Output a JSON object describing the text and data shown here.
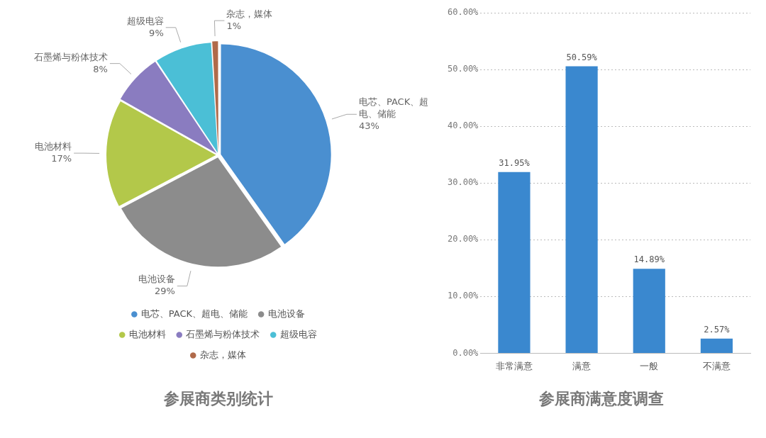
{
  "chart_data": [
    {
      "type": "pie",
      "title": "参展商类别统计",
      "categories": [
        "电芯、PACK、超电、储能",
        "电池设备",
        "电池材料",
        "石墨烯与粉体技术",
        "超级电容",
        "杂志，媒体"
      ],
      "values": [
        43,
        29,
        17,
        8,
        9,
        1
      ],
      "colors": [
        "#4a8fd0",
        "#8c8c8c",
        "#b3c84a",
        "#8a7cc0",
        "#4bbfd6",
        "#b06a4a"
      ],
      "value_labels": [
        "43%",
        "29%",
        "17%",
        "8%",
        "9%",
        "1%"
      ],
      "legend": "bottom"
    },
    {
      "type": "bar",
      "title": "参展商满意度调查",
      "categories": [
        "非常满意",
        "满意",
        "一般",
        "不满意"
      ],
      "values": [
        31.95,
        50.59,
        14.89,
        2.57
      ],
      "color": "#3a88cf",
      "value_labels": [
        "31.95%",
        "50.59%",
        "14.89%",
        "2.57%"
      ],
      "ylim": [
        0,
        60
      ],
      "yticks": [
        {
          "value": 0,
          "label": "0.00%"
        },
        {
          "value": 10,
          "label": "10.00%"
        },
        {
          "value": 20,
          "label": "20.00%"
        },
        {
          "value": 30,
          "label": "30.00%"
        },
        {
          "value": 40,
          "label": "40.00%"
        },
        {
          "value": 50,
          "label": "50.00%"
        },
        {
          "value": 60,
          "label": "60.00%"
        }
      ],
      "grid": "y"
    }
  ]
}
